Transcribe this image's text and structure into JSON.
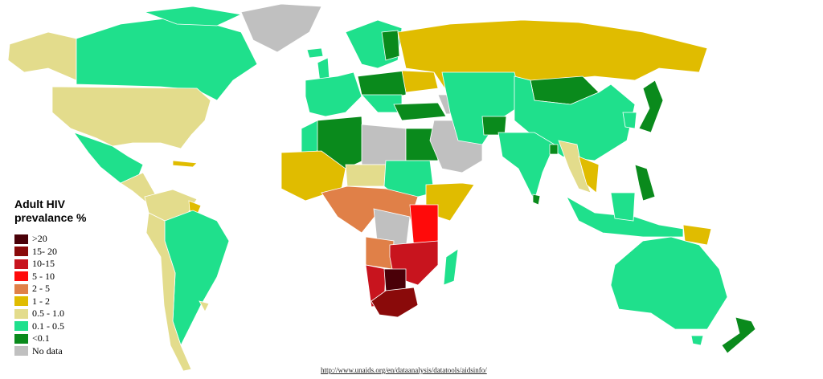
{
  "legend": {
    "title_line1": "Adult HIV",
    "title_line2": "prevalance %",
    "items": [
      {
        "label": ">20",
        "color": "#4a0008"
      },
      {
        "label": "15- 20",
        "color": "#8a0a0a"
      },
      {
        "label": "10-15",
        "color": "#c8141e"
      },
      {
        "label": "5 - 10",
        "color": "#ff0a0a"
      },
      {
        "label": "2 - 5",
        "color": "#e08048"
      },
      {
        "label": "1 - 2",
        "color": "#e0bc00"
      },
      {
        "label": "0.5 - 1.0",
        "color": "#e3dc8c"
      },
      {
        "label": "0.1 - 0.5",
        "color": "#1fe08c"
      },
      {
        "label": "<0.1",
        "color": "#0a8a1c"
      },
      {
        "label": "No data",
        "color": "#c0c0c0"
      }
    ]
  },
  "source_link": "http://www.unaids.org/en/dataanalysis/datatools/aidsinfo/"
}
